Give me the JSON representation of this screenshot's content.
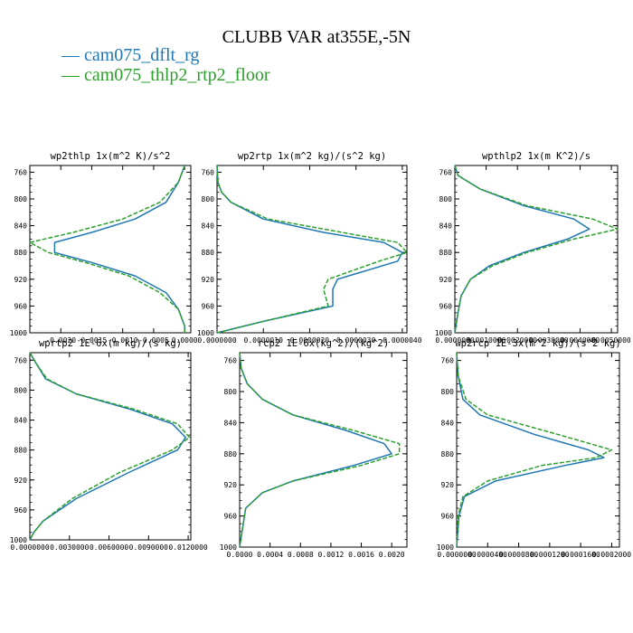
{
  "title": "CLUBB VAR at355E,-5N",
  "legend": [
    {
      "label": "— cam075_dflt_rg",
      "color": "#1f77b4"
    },
    {
      "label": "— cam075_thlp2_rtp2_floor",
      "color": "#2ca02c"
    }
  ],
  "chart_data": [
    {
      "type": "line",
      "title": "wp2thlp  1x(m^2 K)/s^2",
      "xlim": [
        -0.0025,
        0.0001
      ],
      "ylim": [
        1000,
        750
      ],
      "xticks": [
        -0.002,
        -0.0015,
        -0.001,
        -0.0005,
        0.0
      ],
      "xtick_labels": [
        "-0.0020",
        "-0.0015",
        "-0.0010",
        "-0.0005",
        "0.0000"
      ],
      "yticks": [
        760,
        800,
        840,
        880,
        920,
        960,
        1000
      ],
      "ytick_labels": [
        "760",
        "800",
        "840",
        "880",
        "920",
        "960",
        "1000"
      ],
      "series": [
        {
          "color": "#1f77b4",
          "dashed": false,
          "x": [
            0.0,
            -0.0001,
            -0.0003,
            -0.0008,
            -0.0015,
            -0.0021,
            -0.0021,
            -0.0015,
            -0.0008,
            -0.0003,
            -0.0001,
            0.0,
            0.0
          ],
          "y": [
            750,
            775,
            805,
            830,
            850,
            865,
            880,
            895,
            915,
            940,
            965,
            990,
            1000
          ]
        },
        {
          "color": "#2ca02c",
          "dashed": true,
          "x": [
            0.0,
            -0.0001,
            -0.0004,
            -0.001,
            -0.0018,
            -0.0025,
            -0.0022,
            -0.0016,
            -0.0009,
            -0.0004,
            -0.0001,
            0.0,
            0.0
          ],
          "y": [
            750,
            775,
            805,
            830,
            850,
            865,
            880,
            895,
            915,
            940,
            965,
            990,
            1000
          ]
        }
      ]
    },
    {
      "type": "line",
      "title": "wp2rtp  1x(m^2 kg)/(s^2 kg)",
      "xlim": [
        0.0,
        4.1e-06
      ],
      "ylim": [
        1000,
        750
      ],
      "xticks": [
        0.0,
        1e-06,
        2e-06,
        3e-06,
        4e-06
      ],
      "xtick_labels": [
        "0.0000000",
        "0.0000010",
        "0.0000020",
        "0.0000030",
        "0.0000040"
      ],
      "yticks": [
        760,
        800,
        840,
        880,
        920,
        960,
        1000
      ],
      "ytick_labels": [
        "760",
        "800",
        "840",
        "880",
        "920",
        "960",
        "1000"
      ],
      "series": [
        {
          "color": "#1f77b4",
          "dashed": false,
          "x": [
            0.0,
            2e-08,
            1e-07,
            3e-07,
            1e-06,
            2.3e-06,
            3.6e-06,
            4e-06,
            3.9e-06,
            2.6e-06,
            2.5e-06,
            2.5e-06,
            1e-06,
            0.0
          ],
          "y": [
            750,
            775,
            790,
            805,
            830,
            850,
            865,
            880,
            893,
            920,
            935,
            960,
            983,
            1000
          ]
        },
        {
          "color": "#2ca02c",
          "dashed": true,
          "x": [
            0.0,
            2e-08,
            1e-07,
            3e-07,
            1.1e-06,
            2.7e-06,
            3.9e-06,
            4.1e-06,
            3.5e-06,
            2.4e-06,
            2.3e-06,
            2.4e-06,
            1e-06,
            0.0
          ],
          "y": [
            750,
            775,
            790,
            805,
            830,
            850,
            865,
            880,
            893,
            920,
            935,
            960,
            983,
            1000
          ]
        }
      ]
    },
    {
      "type": "line",
      "title": "wpthlp2  1x(m K^2)/s",
      "xlim": [
        0.0,
        0.0052
      ],
      "ylim": [
        1000,
        750
      ],
      "xticks": [
        0.0,
        0.001,
        0.002,
        0.003,
        0.004,
        0.005
      ],
      "xtick_labels": [
        "0.0000000",
        "0.0010000",
        "0.0020000",
        "0.0030000",
        "0.0040000",
        "0.0050000"
      ],
      "yticks": [
        760,
        800,
        840,
        880,
        920,
        960,
        1000
      ],
      "ytick_labels": [
        "760",
        "800",
        "840",
        "880",
        "920",
        "960",
        "1000"
      ],
      "series": [
        {
          "color": "#1f77b4",
          "dashed": false,
          "x": [
            0.0,
            0.0001,
            0.0008,
            0.0022,
            0.0038,
            0.0043,
            0.0036,
            0.0022,
            0.0011,
            0.0005,
            0.0002,
            0.0001,
            0.0
          ],
          "y": [
            750,
            765,
            785,
            810,
            830,
            845,
            860,
            880,
            900,
            920,
            945,
            970,
            1000
          ]
        },
        {
          "color": "#2ca02c",
          "dashed": true,
          "x": [
            0.0,
            0.0001,
            0.0008,
            0.0023,
            0.0044,
            0.0052,
            0.0038,
            0.0023,
            0.0012,
            0.0005,
            0.0002,
            0.0001,
            0.0
          ],
          "y": [
            750,
            765,
            785,
            810,
            830,
            845,
            860,
            880,
            900,
            920,
            945,
            970,
            1000
          ]
        }
      ]
    },
    {
      "type": "line",
      "title": "wprtp2  1E-6x(m kg)/(s kg)",
      "xlim": [
        0.0,
        0.0122
      ],
      "ylim": [
        1000,
        750
      ],
      "xticks": [
        0.0,
        0.003,
        0.006,
        0.009,
        0.012
      ],
      "xtick_labels": [
        "0.0000000",
        "0.0030000",
        "0.0060000",
        "0.0090000",
        "0.0120000"
      ],
      "yticks": [
        760,
        800,
        840,
        880,
        920,
        960,
        1000
      ],
      "ytick_labels": [
        "760",
        "800",
        "840",
        "880",
        "920",
        "960",
        "1000"
      ],
      "series": [
        {
          "color": "#1f77b4",
          "dashed": false,
          "x": [
            0.0,
            0.0005,
            0.0012,
            0.0035,
            0.0075,
            0.0108,
            0.0118,
            0.0112,
            0.0075,
            0.0035,
            0.001,
            0.0003,
            0.0
          ],
          "y": [
            750,
            765,
            785,
            805,
            825,
            845,
            863,
            880,
            910,
            945,
            975,
            990,
            1000
          ]
        },
        {
          "color": "#2ca02c",
          "dashed": true,
          "x": [
            0.0,
            0.0005,
            0.0013,
            0.0035,
            0.0078,
            0.0112,
            0.0121,
            0.0108,
            0.0068,
            0.0032,
            0.001,
            0.0003,
            0.0
          ],
          "y": [
            750,
            765,
            785,
            805,
            825,
            845,
            863,
            880,
            910,
            945,
            975,
            990,
            1000
          ]
        }
      ]
    },
    {
      "type": "line",
      "title": "rcp2  1E-6x(kg^2)/(kg^2)",
      "xlim": [
        0.0,
        0.0022
      ],
      "ylim": [
        1000,
        750
      ],
      "xticks": [
        0.0,
        0.0004,
        0.0008,
        0.0012,
        0.0016,
        0.002
      ],
      "xtick_labels": [
        "0.0000",
        "0.0004",
        "0.0008",
        "0.0012",
        "0.0016",
        "0.0020"
      ],
      "yticks": [
        760,
        800,
        840,
        880,
        920,
        960,
        1000
      ],
      "ytick_labels": [
        "760",
        "800",
        "840",
        "880",
        "920",
        "960",
        "1000"
      ],
      "series": [
        {
          "color": "#1f77b4",
          "dashed": false,
          "x": [
            0.0,
            2e-05,
            0.0001,
            0.0003,
            0.0007,
            0.0014,
            0.0019,
            0.002,
            0.0015,
            0.0007,
            0.0003,
            8e-05,
            0.0
          ],
          "y": [
            750,
            770,
            790,
            810,
            830,
            850,
            867,
            880,
            895,
            915,
            930,
            950,
            1000
          ]
        },
        {
          "color": "#2ca02c",
          "dashed": true,
          "x": [
            0.0,
            2e-05,
            0.0001,
            0.0003,
            0.0007,
            0.0015,
            0.0021,
            0.0021,
            0.0016,
            0.0007,
            0.0003,
            8e-05,
            0.0
          ],
          "y": [
            750,
            770,
            790,
            810,
            830,
            850,
            867,
            880,
            895,
            915,
            930,
            950,
            1000
          ]
        }
      ]
    },
    {
      "type": "line",
      "title": "wp2rcp  1E-3x(m^2 kg)/(s^2 kg)",
      "xlim": [
        0.0,
        0.00021
      ],
      "ylim": [
        1000,
        750
      ],
      "xticks": [
        0.0,
        4e-05,
        8e-05,
        0.00012,
        0.00016,
        0.0002
      ],
      "xtick_labels": [
        "0.0000000",
        "0.0000400",
        "0.0000800",
        "0.0001200",
        "0.0001600",
        "0.0002000"
      ],
      "yticks": [
        760,
        800,
        840,
        880,
        920,
        960,
        1000
      ],
      "ytick_labels": [
        "760",
        "800",
        "840",
        "880",
        "920",
        "960",
        "1000"
      ],
      "series": [
        {
          "color": "#1f77b4",
          "dashed": false,
          "x": [
            0.0,
            2e-06,
            8e-06,
            3e-05,
            0.0001,
            0.00017,
            0.00019,
            0.00014,
            5e-05,
            1e-05,
            3e-06,
            0.0
          ],
          "y": [
            750,
            780,
            810,
            830,
            855,
            875,
            885,
            895,
            915,
            935,
            960,
            1000
          ]
        },
        {
          "color": "#2ca02c",
          "dashed": true,
          "x": [
            0.0,
            2e-06,
            1.2e-05,
            4e-05,
            0.00013,
            0.0002,
            0.00018,
            0.00011,
            4e-05,
            8e-06,
            2e-06,
            0.0
          ],
          "y": [
            750,
            780,
            810,
            830,
            855,
            875,
            885,
            895,
            915,
            935,
            960,
            1000
          ]
        }
      ]
    }
  ]
}
